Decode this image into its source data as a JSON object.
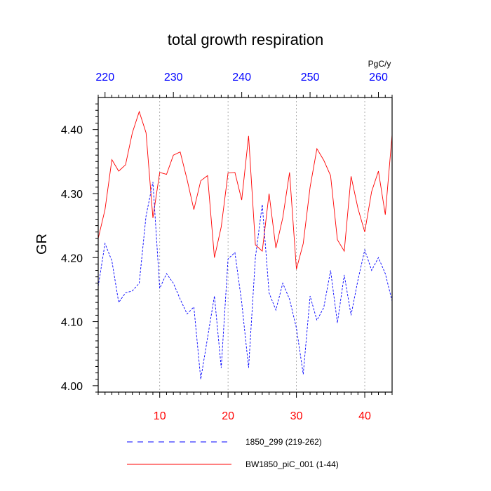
{
  "chart_data": {
    "type": "line",
    "title": "total growth respiration",
    "ylabel": "GR",
    "units": "PgC/y",
    "xlim": [
      1,
      44
    ],
    "ylim": [
      3.99,
      4.45
    ],
    "top_xlim": [
      219,
      262
    ],
    "x_ticks": [
      10,
      20,
      30,
      40
    ],
    "x_tick_labels": [
      "10",
      "20",
      "30",
      "40"
    ],
    "top_ticks": [
      220,
      230,
      240,
      250,
      260
    ],
    "top_tick_labels": [
      "220",
      "230",
      "240",
      "250",
      "260"
    ],
    "y_ticks": [
      4.0,
      4.1,
      4.2,
      4.3,
      4.4
    ],
    "y_tick_labels": [
      "4.00",
      "4.10",
      "4.20",
      "4.30",
      "4.40"
    ],
    "grid": "vertical dotted at bottom-axis ticks",
    "legend_position": "bottom",
    "x": [
      1,
      2,
      3,
      4,
      5,
      6,
      7,
      8,
      9,
      10,
      11,
      12,
      13,
      14,
      15,
      16,
      17,
      18,
      19,
      20,
      21,
      22,
      23,
      24,
      25,
      26,
      27,
      28,
      29,
      30,
      31,
      32,
      33,
      34,
      35,
      36,
      37,
      38,
      39,
      40,
      41,
      42,
      43,
      44
    ],
    "series": [
      {
        "name": "1850_299 (219-262)",
        "color": "#0000ff",
        "style": "dashed",
        "values": [
          4.155,
          4.222,
          4.195,
          4.13,
          4.145,
          4.148,
          4.16,
          4.265,
          4.318,
          4.152,
          4.175,
          4.16,
          4.135,
          4.112,
          4.123,
          4.01,
          4.075,
          4.14,
          4.028,
          4.198,
          4.208,
          4.13,
          4.028,
          4.2,
          4.283,
          4.145,
          4.118,
          4.16,
          4.135,
          4.09,
          4.018,
          4.14,
          4.102,
          4.122,
          4.18,
          4.098,
          4.173,
          4.11,
          4.165,
          4.212,
          4.18,
          4.2,
          4.175,
          4.132
        ]
      },
      {
        "name": "BW1850_piC_001 (1-44)",
        "color": "#ff0000",
        "style": "solid",
        "values": [
          4.23,
          4.275,
          4.353,
          4.335,
          4.345,
          4.395,
          4.428,
          4.395,
          4.262,
          4.333,
          4.33,
          4.36,
          4.365,
          4.322,
          4.275,
          4.32,
          4.328,
          4.2,
          4.248,
          4.332,
          4.333,
          4.29,
          4.39,
          4.22,
          4.21,
          4.3,
          4.215,
          4.262,
          4.333,
          4.182,
          4.222,
          4.31,
          4.37,
          4.352,
          4.328,
          4.228,
          4.21,
          4.327,
          4.277,
          4.24,
          4.303,
          4.335,
          4.267,
          4.392
        ]
      }
    ]
  }
}
